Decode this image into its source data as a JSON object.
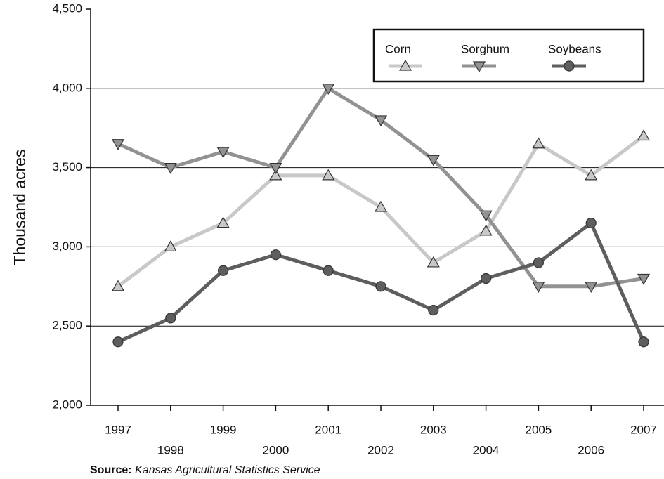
{
  "chart_data": {
    "type": "line",
    "y_label": "Thousand acres",
    "source_label": "Source:",
    "source": "Kansas Agricultural Statistics Service",
    "categories": [
      "1997",
      "1998",
      "1999",
      "2000",
      "2001",
      "2002",
      "2003",
      "2004",
      "2005",
      "2006",
      "2007"
    ],
    "series": [
      {
        "name": "Corn",
        "color": "#c8c8c8",
        "marker": "triangle-up",
        "values": [
          2750,
          3000,
          3150,
          3450,
          3450,
          3250,
          2900,
          3100,
          3650,
          3450,
          3700
        ]
      },
      {
        "name": "Sorghum",
        "color": "#929292",
        "marker": "triangle-down",
        "values": [
          3650,
          3500,
          3600,
          3500,
          4000,
          3800,
          3550,
          3200,
          2750,
          2750,
          2800
        ]
      },
      {
        "name": "Soybeans",
        "color": "#5e5e5e",
        "marker": "circle",
        "values": [
          2400,
          2550,
          2850,
          2950,
          2850,
          2750,
          2600,
          2800,
          2900,
          3150,
          2400
        ]
      }
    ],
    "ylim": [
      2000,
      4500
    ],
    "yticks": [
      {
        "value": 2000,
        "label": "2,000"
      },
      {
        "value": 2500,
        "label": "2,500"
      },
      {
        "value": 3000,
        "label": "3,000"
      },
      {
        "value": 3500,
        "label": "3,500"
      },
      {
        "value": 4000,
        "label": "4,000"
      },
      {
        "value": 4500,
        "label": "4,500"
      }
    ],
    "grid": true,
    "legend": "top-right"
  }
}
